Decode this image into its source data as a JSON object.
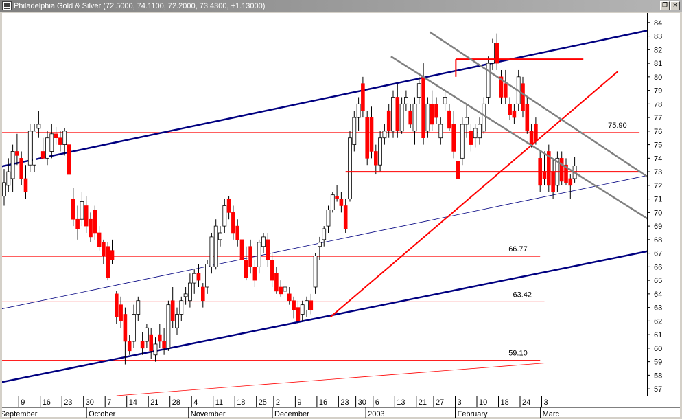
{
  "window": {
    "title": "Philadelphia Gold & Silver (72.5000, 74.1100, 72.2000, 73.4300, +1.13000)",
    "restore_glyph": "❐",
    "close_glyph": "×"
  },
  "colors": {
    "up": "#ffffff",
    "down": "#ff0000",
    "wick": "#000000",
    "channel": "#000080",
    "red_line": "#ff0000",
    "gray_line": "#808080"
  },
  "chart_data": {
    "type": "candlestick",
    "title": "Philadelphia Gold & Silver",
    "last_quote": {
      "open": 72.5,
      "high": 74.11,
      "low": 72.2,
      "close": 73.43,
      "change": 1.13
    },
    "ylim": [
      56.5,
      84.7
    ],
    "y_ticks": [
      57,
      58,
      59,
      60,
      61,
      62,
      63,
      64,
      65,
      66,
      67,
      68,
      69,
      70,
      71,
      72,
      73,
      74,
      75,
      76,
      77,
      78,
      79,
      80,
      81,
      82,
      83,
      84
    ],
    "x_day_ticks": [
      {
        "i": 4,
        "label": "9"
      },
      {
        "i": 9,
        "label": "16"
      },
      {
        "i": 14,
        "label": "23"
      },
      {
        "i": 19,
        "label": "30"
      },
      {
        "i": 24,
        "label": "7"
      },
      {
        "i": 29,
        "label": "14"
      },
      {
        "i": 34,
        "label": "21"
      },
      {
        "i": 39,
        "label": "28"
      },
      {
        "i": 44,
        "label": "4"
      },
      {
        "i": 49,
        "label": "11"
      },
      {
        "i": 54,
        "label": "18"
      },
      {
        "i": 59,
        "label": "25"
      },
      {
        "i": 63,
        "label": "2"
      },
      {
        "i": 68,
        "label": "9"
      },
      {
        "i": 73,
        "label": "16"
      },
      {
        "i": 78,
        "label": "23"
      },
      {
        "i": 82,
        "label": "30"
      },
      {
        "i": 86,
        "label": "6"
      },
      {
        "i": 91,
        "label": "13"
      },
      {
        "i": 96,
        "label": "21"
      },
      {
        "i": 100,
        "label": "27"
      },
      {
        "i": 105,
        "label": "3"
      },
      {
        "i": 110,
        "label": "10"
      },
      {
        "i": 115,
        "label": "18"
      },
      {
        "i": 120,
        "label": "24"
      },
      {
        "i": 125,
        "label": "3"
      }
    ],
    "x_months": [
      {
        "i": -0.7,
        "label": "September"
      },
      {
        "i": 19.7,
        "label": "October"
      },
      {
        "i": 43.3,
        "label": "November"
      },
      {
        "i": 62.7,
        "label": "December"
      },
      {
        "i": 84.3,
        "label": "2003"
      },
      {
        "i": 105,
        "label": "February"
      },
      {
        "i": 124.7,
        "label": "Marc"
      }
    ],
    "candles": [
      {
        "o": 71.2,
        "h": 73.2,
        "l": 70.5,
        "c": 72.2
      },
      {
        "o": 72.0,
        "h": 74.0,
        "l": 71.5,
        "c": 73.0
      },
      {
        "o": 72.5,
        "h": 75.0,
        "l": 71.5,
        "c": 74.5
      },
      {
        "o": 74.5,
        "h": 75.8,
        "l": 73.5,
        "c": 74.2
      },
      {
        "o": 74.0,
        "h": 74.5,
        "l": 72.0,
        "c": 72.5
      },
      {
        "o": 72.5,
        "h": 73.5,
        "l": 71.0,
        "c": 71.5
      },
      {
        "o": 73.5,
        "h": 76.5,
        "l": 73.0,
        "c": 76.0
      },
      {
        "o": 73.5,
        "h": 76.5,
        "l": 73.0,
        "c": 76.0
      },
      {
        "o": 76.2,
        "h": 77.5,
        "l": 75.5,
        "c": 76.5
      },
      {
        "o": 74.5,
        "h": 75.5,
        "l": 74.0,
        "c": 74.0
      },
      {
        "o": 74.0,
        "h": 76.0,
        "l": 73.5,
        "c": 75.5
      },
      {
        "o": 74.5,
        "h": 76.5,
        "l": 74.0,
        "c": 75.8
      },
      {
        "o": 75.8,
        "h": 76.3,
        "l": 75.0,
        "c": 75.5
      },
      {
        "o": 75.5,
        "h": 76.0,
        "l": 74.5,
        "c": 75.0
      },
      {
        "o": 75.0,
        "h": 76.2,
        "l": 74.2,
        "c": 76.0
      },
      {
        "o": 75.0,
        "h": 75.5,
        "l": 72.5,
        "c": 72.8
      },
      {
        "o": 71.0,
        "h": 71.8,
        "l": 69.0,
        "c": 69.5
      },
      {
        "o": 69.5,
        "h": 70.5,
        "l": 68.0,
        "c": 68.8
      },
      {
        "o": 69.5,
        "h": 71.5,
        "l": 69.0,
        "c": 70.8
      },
      {
        "o": 70.5,
        "h": 71.2,
        "l": 68.5,
        "c": 69.0
      },
      {
        "o": 69.5,
        "h": 70.0,
        "l": 67.8,
        "c": 68.2
      },
      {
        "o": 70.2,
        "h": 70.5,
        "l": 68.0,
        "c": 68.5
      },
      {
        "o": 68.5,
        "h": 69.0,
        "l": 67.2,
        "c": 67.5
      },
      {
        "o": 67.8,
        "h": 68.0,
        "l": 66.2,
        "c": 66.8
      },
      {
        "o": 67.5,
        "h": 67.8,
        "l": 65.0,
        "c": 65.2
      },
      {
        "o": 67.2,
        "h": 68.0,
        "l": 66.2,
        "c": 66.5
      },
      {
        "o": 64.0,
        "h": 64.2,
        "l": 61.8,
        "c": 62.3
      },
      {
        "o": 63.2,
        "h": 63.8,
        "l": 61.5,
        "c": 62.0
      },
      {
        "o": 62.5,
        "h": 63.0,
        "l": 58.8,
        "c": 60.5
      },
      {
        "o": 60.5,
        "h": 61.0,
        "l": 59.5,
        "c": 59.8
      },
      {
        "o": 60.5,
        "h": 63.2,
        "l": 60.0,
        "c": 62.5
      },
      {
        "o": 62.5,
        "h": 63.8,
        "l": 62.0,
        "c": 63.5
      },
      {
        "o": 60.5,
        "h": 61.2,
        "l": 59.5,
        "c": 60.0
      },
      {
        "o": 60.5,
        "h": 61.8,
        "l": 60.0,
        "c": 61.5
      },
      {
        "o": 61.0,
        "h": 61.5,
        "l": 59.2,
        "c": 59.8
      },
      {
        "o": 59.5,
        "h": 60.8,
        "l": 59.0,
        "c": 60.3
      },
      {
        "o": 61.0,
        "h": 61.8,
        "l": 60.0,
        "c": 60.5
      },
      {
        "o": 60.5,
        "h": 61.5,
        "l": 59.5,
        "c": 60.0
      },
      {
        "o": 60.0,
        "h": 63.5,
        "l": 59.8,
        "c": 63.2
      },
      {
        "o": 63.5,
        "h": 64.5,
        "l": 61.5,
        "c": 62.0
      },
      {
        "o": 61.5,
        "h": 63.0,
        "l": 61.0,
        "c": 62.5
      },
      {
        "o": 62.5,
        "h": 63.8,
        "l": 62.0,
        "c": 63.5
      },
      {
        "o": 63.8,
        "h": 64.5,
        "l": 63.2,
        "c": 64.0
      },
      {
        "o": 63.5,
        "h": 65.5,
        "l": 63.0,
        "c": 64.8
      },
      {
        "o": 64.8,
        "h": 65.8,
        "l": 64.0,
        "c": 65.5
      },
      {
        "o": 65.5,
        "h": 66.2,
        "l": 64.5,
        "c": 65.0
      },
      {
        "o": 64.5,
        "h": 64.8,
        "l": 63.0,
        "c": 63.5
      },
      {
        "o": 64.5,
        "h": 66.5,
        "l": 64.0,
        "c": 66.2
      },
      {
        "o": 66.0,
        "h": 68.5,
        "l": 65.5,
        "c": 68.2
      },
      {
        "o": 66.0,
        "h": 69.5,
        "l": 65.8,
        "c": 69.0
      },
      {
        "o": 68.0,
        "h": 69.0,
        "l": 67.5,
        "c": 68.5
      },
      {
        "o": 69.0,
        "h": 71.0,
        "l": 68.5,
        "c": 70.5
      },
      {
        "o": 71.0,
        "h": 71.2,
        "l": 69.5,
        "c": 70.0
      },
      {
        "o": 70.0,
        "h": 70.5,
        "l": 68.0,
        "c": 68.5
      },
      {
        "o": 69.0,
        "h": 69.5,
        "l": 67.5,
        "c": 68.0
      },
      {
        "o": 68.0,
        "h": 68.5,
        "l": 66.0,
        "c": 66.5
      },
      {
        "o": 66.5,
        "h": 67.5,
        "l": 65.0,
        "c": 65.2
      },
      {
        "o": 67.5,
        "h": 68.0,
        "l": 65.5,
        "c": 66.0
      },
      {
        "o": 66.0,
        "h": 66.5,
        "l": 64.5,
        "c": 65.0
      },
      {
        "o": 66.0,
        "h": 68.0,
        "l": 65.5,
        "c": 67.8
      },
      {
        "o": 67.5,
        "h": 68.5,
        "l": 67.0,
        "c": 68.2
      },
      {
        "o": 68.0,
        "h": 68.5,
        "l": 66.0,
        "c": 66.5
      },
      {
        "o": 66.5,
        "h": 67.0,
        "l": 64.5,
        "c": 65.0
      },
      {
        "o": 65.5,
        "h": 66.0,
        "l": 64.0,
        "c": 64.2
      },
      {
        "o": 64.5,
        "h": 65.0,
        "l": 63.8,
        "c": 64.0
      },
      {
        "o": 64.2,
        "h": 64.8,
        "l": 63.5,
        "c": 64.5
      },
      {
        "o": 64.0,
        "h": 64.5,
        "l": 63.2,
        "c": 63.5
      },
      {
        "o": 63.5,
        "h": 63.8,
        "l": 62.2,
        "c": 62.8
      },
      {
        "o": 63.0,
        "h": 63.5,
        "l": 61.8,
        "c": 62.0
      },
      {
        "o": 62.5,
        "h": 63.5,
        "l": 62.0,
        "c": 63.2
      },
      {
        "o": 62.8,
        "h": 63.8,
        "l": 62.3,
        "c": 63.5
      },
      {
        "o": 63.5,
        "h": 64.0,
        "l": 62.5,
        "c": 62.8
      },
      {
        "o": 64.5,
        "h": 67.0,
        "l": 64.0,
        "c": 66.8
      },
      {
        "o": 67.5,
        "h": 68.2,
        "l": 66.5,
        "c": 67.8
      },
      {
        "o": 68.0,
        "h": 69.0,
        "l": 67.5,
        "c": 68.8
      },
      {
        "o": 69.0,
        "h": 70.5,
        "l": 68.5,
        "c": 70.2
      },
      {
        "o": 70.2,
        "h": 71.5,
        "l": 70.0,
        "c": 71.3
      },
      {
        "o": 71.2,
        "h": 72.0,
        "l": 70.8,
        "c": 71.0
      },
      {
        "o": 71.0,
        "h": 71.5,
        "l": 70.0,
        "c": 70.5
      },
      {
        "o": 70.5,
        "h": 71.0,
        "l": 68.5,
        "c": 68.8
      },
      {
        "o": 71.0,
        "h": 76.0,
        "l": 70.8,
        "c": 75.5
      },
      {
        "o": 75.0,
        "h": 77.5,
        "l": 74.5,
        "c": 77.0
      },
      {
        "o": 77.0,
        "h": 78.5,
        "l": 76.0,
        "c": 78.0
      },
      {
        "o": 79.5,
        "h": 80.0,
        "l": 77.0,
        "c": 77.5
      },
      {
        "o": 77.0,
        "h": 77.5,
        "l": 73.5,
        "c": 74.0
      },
      {
        "o": 77.0,
        "h": 77.8,
        "l": 74.0,
        "c": 74.5
      },
      {
        "o": 74.5,
        "h": 75.0,
        "l": 72.8,
        "c": 73.5
      },
      {
        "o": 73.5,
        "h": 76.0,
        "l": 73.0,
        "c": 75.5
      },
      {
        "o": 75.5,
        "h": 76.5,
        "l": 75.0,
        "c": 76.0
      },
      {
        "o": 77.5,
        "h": 78.0,
        "l": 75.5,
        "c": 76.0
      },
      {
        "o": 76.0,
        "h": 79.0,
        "l": 75.5,
        "c": 78.5
      },
      {
        "o": 78.5,
        "h": 79.5,
        "l": 75.5,
        "c": 76.0
      },
      {
        "o": 76.0,
        "h": 78.5,
        "l": 75.8,
        "c": 78.0
      },
      {
        "o": 78.0,
        "h": 79.0,
        "l": 77.5,
        "c": 78.5
      },
      {
        "o": 77.5,
        "h": 78.0,
        "l": 76.2,
        "c": 76.5
      },
      {
        "o": 76.0,
        "h": 78.5,
        "l": 75.0,
        "c": 78.0
      },
      {
        "o": 78.5,
        "h": 80.0,
        "l": 78.0,
        "c": 79.5
      },
      {
        "o": 80.0,
        "h": 81.0,
        "l": 75.0,
        "c": 75.5
      },
      {
        "o": 76.0,
        "h": 78.5,
        "l": 75.5,
        "c": 78.0
      },
      {
        "o": 78.0,
        "h": 79.0,
        "l": 76.0,
        "c": 76.5
      },
      {
        "o": 78.0,
        "h": 78.5,
        "l": 76.5,
        "c": 77.0
      },
      {
        "o": 75.5,
        "h": 77.0,
        "l": 75.0,
        "c": 76.5
      },
      {
        "o": 78.0,
        "h": 79.0,
        "l": 77.5,
        "c": 78.5
      },
      {
        "o": 77.5,
        "h": 78.0,
        "l": 76.0,
        "c": 76.2
      },
      {
        "o": 76.5,
        "h": 77.5,
        "l": 74.0,
        "c": 74.5
      },
      {
        "o": 73.8,
        "h": 74.5,
        "l": 72.2,
        "c": 72.5
      },
      {
        "o": 74.0,
        "h": 77.0,
        "l": 73.5,
        "c": 76.5
      },
      {
        "o": 76.5,
        "h": 78.0,
        "l": 75.5,
        "c": 77.0
      },
      {
        "o": 76.0,
        "h": 76.5,
        "l": 74.5,
        "c": 75.0
      },
      {
        "o": 75.5,
        "h": 76.5,
        "l": 74.8,
        "c": 76.2
      },
      {
        "o": 75.5,
        "h": 77.0,
        "l": 75.0,
        "c": 76.5
      },
      {
        "o": 76.0,
        "h": 78.5,
        "l": 75.8,
        "c": 78.0
      },
      {
        "o": 78.5,
        "h": 81.5,
        "l": 78.0,
        "c": 81.0
      },
      {
        "o": 81.0,
        "h": 82.8,
        "l": 80.5,
        "c": 82.5
      },
      {
        "o": 82.5,
        "h": 83.2,
        "l": 80.5,
        "c": 81.0
      },
      {
        "o": 80.0,
        "h": 80.5,
        "l": 78.0,
        "c": 78.5
      },
      {
        "o": 79.5,
        "h": 80.5,
        "l": 78.0,
        "c": 78.5
      },
      {
        "o": 78.0,
        "h": 78.5,
        "l": 76.8,
        "c": 77.2
      },
      {
        "o": 77.5,
        "h": 78.0,
        "l": 76.5,
        "c": 77.0
      },
      {
        "o": 78.0,
        "h": 80.5,
        "l": 77.5,
        "c": 80.0
      },
      {
        "o": 79.5,
        "h": 80.0,
        "l": 77.0,
        "c": 77.5
      },
      {
        "o": 78.0,
        "h": 78.5,
        "l": 75.8,
        "c": 76.0
      },
      {
        "o": 76.0,
        "h": 76.5,
        "l": 74.8,
        "c": 75.0
      },
      {
        "o": 76.5,
        "h": 77.0,
        "l": 75.0,
        "c": 75.3
      },
      {
        "o": 74.0,
        "h": 74.5,
        "l": 71.5,
        "c": 72.0
      },
      {
        "o": 73.0,
        "h": 74.5,
        "l": 72.0,
        "c": 72.5
      },
      {
        "o": 74.5,
        "h": 75.0,
        "l": 71.5,
        "c": 72.0
      },
      {
        "o": 73.0,
        "h": 74.0,
        "l": 71.0,
        "c": 71.5
      },
      {
        "o": 72.0,
        "h": 74.5,
        "l": 71.5,
        "c": 74.0
      },
      {
        "o": 74.0,
        "h": 74.5,
        "l": 72.0,
        "c": 72.3
      },
      {
        "o": 73.5,
        "h": 74.0,
        "l": 72.0,
        "c": 72.2
      },
      {
        "o": 72.5,
        "h": 72.8,
        "l": 71.0,
        "c": 72.0
      },
      {
        "o": 72.5,
        "h": 74.11,
        "l": 72.2,
        "c": 73.43
      }
    ],
    "horizontal_levels": [
      {
        "y": 75.9,
        "label": "75.90",
        "i_end": 147
      },
      {
        "y": 66.77,
        "label": "66.77",
        "i_end": 124
      },
      {
        "y": 63.42,
        "label": "63.42",
        "i_end": 125
      },
      {
        "y": 59.1,
        "label": "59.10",
        "i_end": 124
      }
    ],
    "trendlines": [
      {
        "style": "channel",
        "x1": -0.5,
        "y1": 73.4,
        "x2": 157.5,
        "y2": 84.0
      },
      {
        "style": "channel",
        "x1": -0.5,
        "y1": 57.5,
        "x2": 157.5,
        "y2": 67.7
      },
      {
        "style": "thin",
        "x1": -0.5,
        "y1": 62.9,
        "x2": 157.5,
        "y2": 73.3
      },
      {
        "style": "thin-red",
        "x1": 26.0,
        "y1": 56.5,
        "x2": 125.0,
        "y2": 58.9
      },
      {
        "style": "thick-red",
        "x1": 75.5,
        "y1": 62.3,
        "x2": 142.0,
        "y2": 80.4
      },
      {
        "style": "thick-red",
        "x1": 79.0,
        "y1": 73.0,
        "x2": 147.0,
        "y2": 73.0
      },
      {
        "style": "thick-red",
        "x1": 104.5,
        "y1": 81.3,
        "x2": 134.0,
        "y2": 81.3
      },
      {
        "style": "thick-red",
        "x1": 104.5,
        "y1": 81.3,
        "x2": 104.5,
        "y2": 80.0
      },
      {
        "style": "gray",
        "x1": 98.5,
        "y1": 83.3,
        "x2": 157.5,
        "y2": 70.8
      },
      {
        "style": "gray",
        "x1": 89.5,
        "y1": 81.5,
        "x2": 157.5,
        "y2": 67.8
      }
    ]
  }
}
